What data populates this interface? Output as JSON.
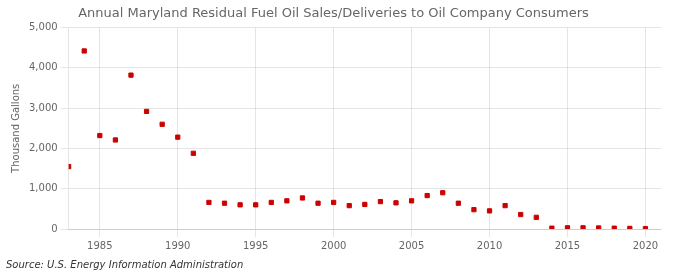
{
  "chart_data": {
    "type": "scatter",
    "title": "Annual Maryland Residual Fuel Oil Sales/Deliveries to Oil Company Consumers",
    "ylabel": "Thousand Gallons",
    "source": "Source: U.S. Energy Information Administration",
    "x": [
      1983,
      1984,
      1985,
      1986,
      1987,
      1988,
      1989,
      1990,
      1991,
      1992,
      1993,
      1994,
      1995,
      1996,
      1997,
      1998,
      1999,
      2000,
      2001,
      2002,
      2003,
      2004,
      2005,
      2006,
      2007,
      2008,
      2009,
      2010,
      2011,
      2012,
      2013,
      2014,
      2015,
      2016,
      2017,
      2018,
      2019,
      2020
    ],
    "values": [
      1550,
      4420,
      2320,
      2210,
      3820,
      2920,
      2600,
      2280,
      1880,
      660,
      640,
      600,
      600,
      660,
      700,
      770,
      640,
      660,
      580,
      610,
      680,
      650,
      700,
      830,
      900,
      640,
      480,
      450,
      580,
      360,
      290,
      20,
      30,
      30,
      25,
      20,
      15,
      10
    ],
    "color": "#cc0000",
    "marker": "square",
    "xlim": [
      1983,
      2021
    ],
    "xticks": [
      1985,
      1990,
      1995,
      2000,
      2005,
      2010,
      2015,
      2020
    ],
    "ylim": [
      0,
      5000
    ],
    "yticks": [
      0,
      {
        "value": 1000,
        "label": "1,000"
      },
      {
        "value": 2000,
        "label": "2,000"
      },
      {
        "value": 3000,
        "label": "3,000"
      },
      {
        "value": 4000,
        "label": "4,000"
      },
      {
        "value": 5000,
        "label": "5,000"
      }
    ],
    "grid": true
  }
}
